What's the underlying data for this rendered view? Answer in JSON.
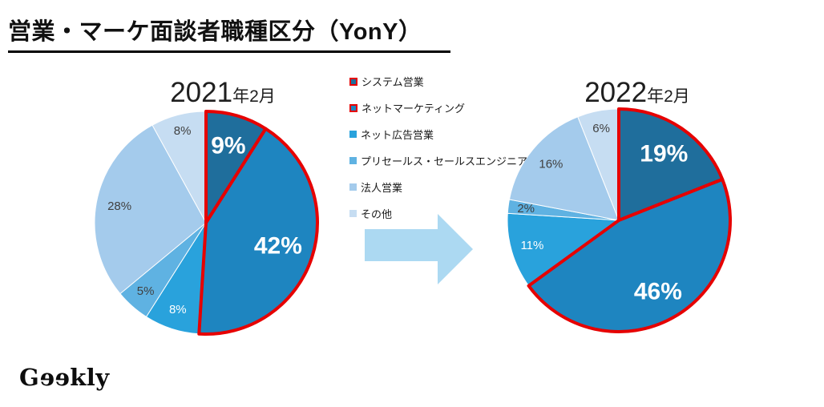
{
  "page": {
    "title": "営業・マーケ面談者職種区分（YonY）",
    "logo_text": "Geekly",
    "logo": {
      "g": "G",
      "ee": "ee",
      "rest": "kly"
    }
  },
  "palette": {
    "slice_colors": [
      "#1F6E9C",
      "#1E85C0",
      "#29A2DC",
      "#5FB2E2",
      "#A4CBEC",
      "#C6DDF2"
    ],
    "highlight_border": "#E60000",
    "arrow": "#ACD9F2",
    "dark_label": "#404040"
  },
  "legend": {
    "items": [
      {
        "label": "システム営業",
        "red_border": true
      },
      {
        "label": "ネットマーケティング",
        "red_border": true
      },
      {
        "label": "ネット広告営業",
        "red_border": false
      },
      {
        "label": "プリセールス・セールスエンジニア",
        "red_border": false
      },
      {
        "label": "法人営業",
        "red_border": false
      },
      {
        "label": "その他",
        "red_border": false
      }
    ]
  },
  "chart_data": [
    {
      "type": "pie",
      "title": "2021年2月",
      "title_year": "2021",
      "title_suffix": "年2月",
      "categories": [
        "システム営業",
        "ネットマーケティング",
        "ネット広告営業",
        "プリセールス・セールスエンジニア",
        "法人営業",
        "その他"
      ],
      "values": [
        9,
        42,
        8,
        5,
        28,
        8
      ],
      "unit": "%",
      "display_labels": [
        "9%",
        "42%",
        "8%",
        "5%",
        "28%",
        "8%"
      ],
      "highlighted": [
        true,
        true,
        false,
        false,
        false,
        false
      ],
      "label_styles": [
        "big-white",
        "big-white",
        "small-white",
        "small-dark",
        "small-dark",
        "small-dark"
      ],
      "label_radius": [
        0.72,
        0.68,
        0.82,
        0.82,
        0.79,
        0.85
      ],
      "start_angle_deg": 0,
      "direction": "clockwise"
    },
    {
      "type": "pie",
      "title": "2022年2月",
      "title_year": "2022",
      "title_suffix": "年2月",
      "categories": [
        "システム営業",
        "ネットマーケティング",
        "ネット広告営業",
        "プリセールス・セールスエンジニア",
        "法人営業",
        "その他"
      ],
      "values": [
        19,
        46,
        11,
        2,
        16,
        6
      ],
      "unit": "%",
      "display_labels": [
        "19%",
        "46%",
        "11%",
        "2%",
        "16%",
        "6%"
      ],
      "highlighted": [
        true,
        true,
        false,
        false,
        false,
        false
      ],
      "label_styles": [
        "big-white",
        "big-white",
        "small-white",
        "small-dark",
        "small-dark",
        "small-dark"
      ],
      "label_radius": [
        0.72,
        0.73,
        0.81,
        0.84,
        0.79,
        0.84
      ],
      "start_angle_deg": 0,
      "direction": "clockwise"
    }
  ]
}
